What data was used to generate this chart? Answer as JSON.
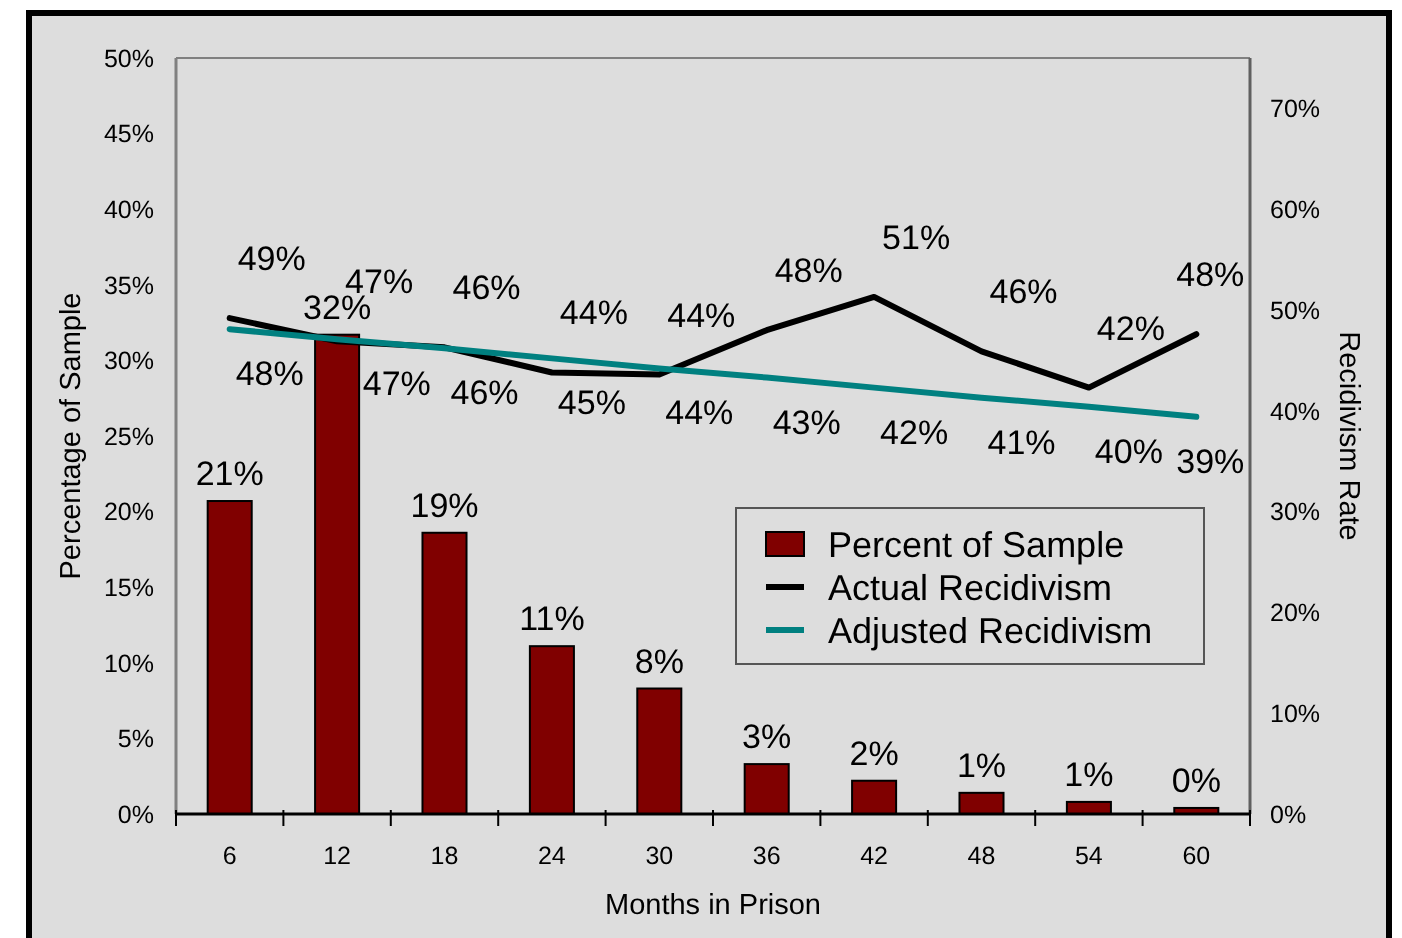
{
  "chart_data": {
    "type": "bar",
    "xlabel": "Months in Prison",
    "ylabel": "Percentage of Sample",
    "y2label": "Recidivism Rate",
    "categories": [
      "6",
      "12",
      "18",
      "24",
      "30",
      "36",
      "42",
      "48",
      "54",
      "60"
    ],
    "series": [
      {
        "name": "Percent of Sample",
        "color": "#800000",
        "values": [
          20.7,
          31.7,
          18.6,
          11.1,
          8.3,
          3.3,
          2.2,
          1.4,
          0.8,
          0.4
        ],
        "value_labels": [
          "21%",
          "32%",
          "19%",
          "11%",
          "8%",
          "3%",
          "2%",
          "1%",
          "1%",
          "0%"
        ]
      },
      {
        "name": "Actual Recidivism",
        "type": "line",
        "axis": "y2",
        "color": "#000000",
        "values": [
          49.2,
          46.9,
          46.3,
          43.8,
          43.6,
          48.0,
          51.3,
          45.9,
          42.3,
          47.6
        ],
        "value_labels": [
          "49%",
          "47%",
          "46%",
          "44%",
          "44%",
          "48%",
          "51%",
          "46%",
          "42%",
          "48%"
        ]
      },
      {
        "name": "Adjusted Recidivism",
        "type": "line",
        "axis": "y2",
        "color": "#008080",
        "values": [
          48.1,
          47.1,
          46.2,
          45.2,
          44.2,
          43.3,
          42.3,
          41.3,
          40.4,
          39.4
        ],
        "value_labels": [
          "48%",
          "47%",
          "46%",
          "45%",
          "44%",
          "43%",
          "42%",
          "41%",
          "40%",
          "39%"
        ]
      }
    ],
    "ylim": [
      0,
      50
    ],
    "yticks": [
      {
        "value": 0,
        "label": "0%"
      },
      {
        "value": 5,
        "label": "5%"
      },
      {
        "value": 10,
        "label": "10%"
      },
      {
        "value": 15,
        "label": "15%"
      },
      {
        "value": 20,
        "label": "20%"
      },
      {
        "value": 25,
        "label": "25%"
      },
      {
        "value": 30,
        "label": "30%"
      },
      {
        "value": 35,
        "label": "35%"
      },
      {
        "value": 40,
        "label": "40%"
      },
      {
        "value": 45,
        "label": "45%"
      },
      {
        "value": 50,
        "label": "50%"
      }
    ],
    "y2lim": [
      0,
      75
    ],
    "y2ticks": [
      {
        "value": 0,
        "label": "0%"
      },
      {
        "value": 10,
        "label": "10%"
      },
      {
        "value": 20,
        "label": "20%"
      },
      {
        "value": 30,
        "label": "30%"
      },
      {
        "value": 40,
        "label": "40%"
      },
      {
        "value": 50,
        "label": "50%"
      },
      {
        "value": 60,
        "label": "60%"
      },
      {
        "value": 70,
        "label": "70%"
      }
    ],
    "legend": "bottom right"
  }
}
